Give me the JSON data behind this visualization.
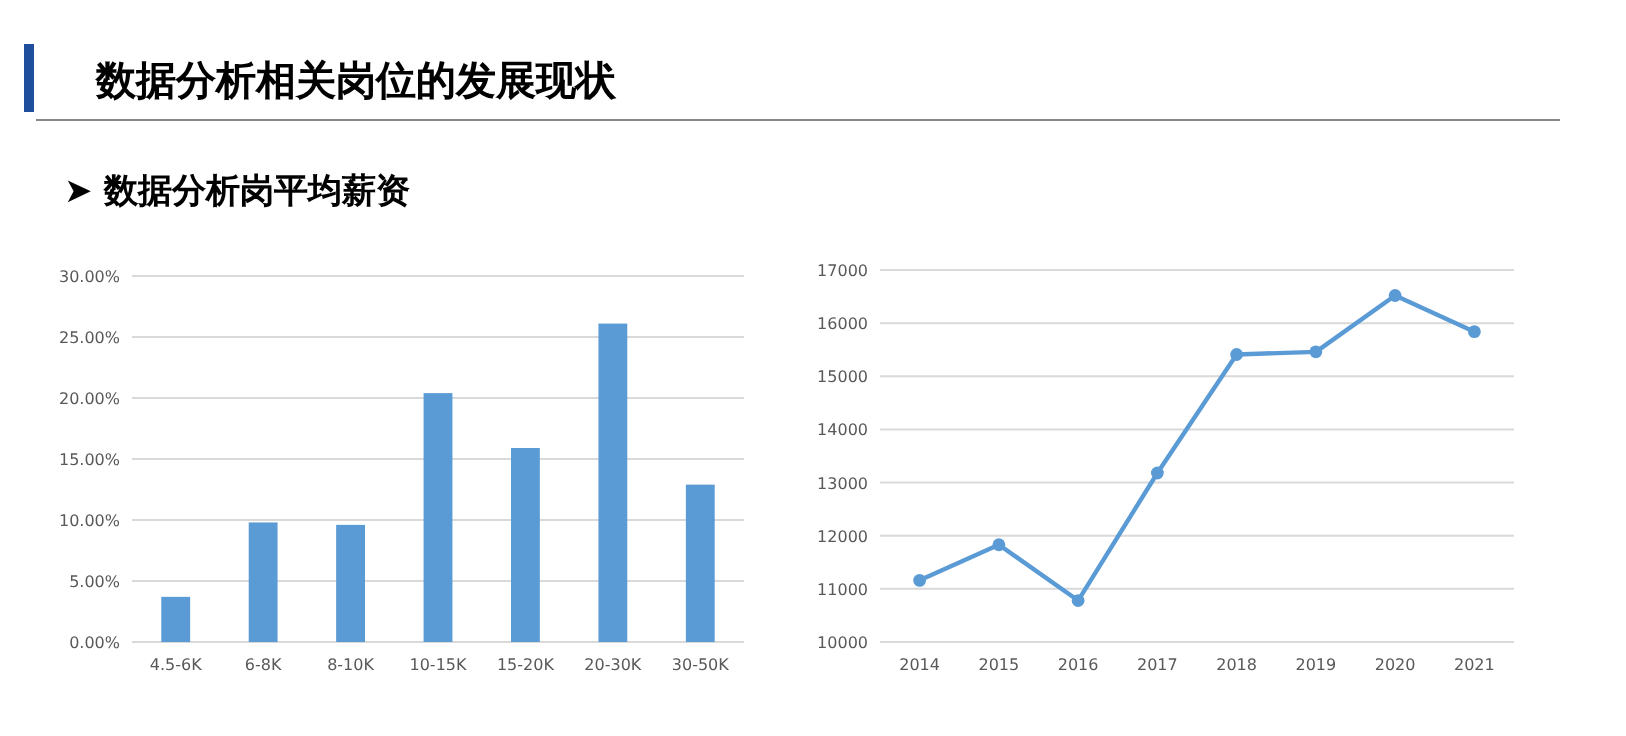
{
  "chart_data": [
    {
      "type": "bar",
      "title": "数据分析相关岗位的发展现状",
      "subtitle": "➤ 数据分析岗平均薪资",
      "categories": [
        "4.5-6K",
        "6-8K",
        "8-10K",
        "10-15K",
        "15-20K",
        "20-30K",
        "30-50K"
      ],
      "values": [
        3.7,
        9.8,
        9.6,
        20.4,
        15.9,
        26.1,
        12.9
      ],
      "color": "#5b9bd5",
      "ylim": [
        0,
        30
      ],
      "yticks": [
        {
          "value": 0,
          "label": "0.00%"
        },
        {
          "value": 5,
          "label": "5.00%"
        },
        {
          "value": 10,
          "label": "10.00%"
        },
        {
          "value": 15,
          "label": "15.00%"
        },
        {
          "value": 20,
          "label": "20.00%"
        },
        {
          "value": 25,
          "label": "25.00%"
        },
        {
          "value": 30,
          "label": "30.00%"
        }
      ],
      "grid": "y"
    },
    {
      "type": "line",
      "categories": [
        "2014",
        "2015",
        "2016",
        "2017",
        "2018",
        "2019",
        "2020",
        "2021"
      ],
      "values": [
        11160,
        11830,
        10780,
        13180,
        15410,
        15460,
        16520,
        15840
      ],
      "color": "#5b9bd5",
      "marker": "circle",
      "line_style": "solid",
      "ylim": [
        10000,
        17000
      ],
      "yticks": [
        10000,
        11000,
        12000,
        13000,
        14000,
        15000,
        16000,
        17000
      ],
      "grid": "y"
    }
  ]
}
